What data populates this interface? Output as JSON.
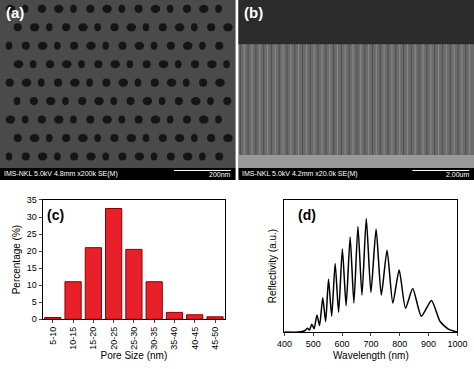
{
  "panels": [
    {
      "label": "(a)",
      "info": "IMS-NKL 5.0kV 4.8mm x200k SE(M)",
      "scale_bar": "200nm"
    },
    {
      "label": "(b)",
      "info": "IMS-NKL 5.0kV 4.2mm x20.0k SE(M)",
      "scale_bar": "2.00um"
    }
  ],
  "chart_data": [
    {
      "type": "bar",
      "annotations": [
        "(c)"
      ],
      "x_label": "Pore Size (nm)",
      "y_label": "Percentage (%)",
      "categories": [
        "5-10",
        "10-15",
        "15-20",
        "20-25",
        "25-30",
        "30-35",
        "35-40",
        "40-45",
        "45-50"
      ],
      "values": [
        0.5,
        11,
        21,
        32.5,
        20.5,
        11,
        2,
        1.3,
        0.7
      ],
      "color": "#e8202a",
      "ylim": [
        0,
        35
      ],
      "yticks": [
        0,
        5,
        10,
        15,
        20,
        25,
        30,
        35
      ],
      "grid": false
    },
    {
      "type": "line",
      "annotations": [
        "(d)"
      ],
      "x_label": "Wavelength (nm)",
      "y_label": "Reflectivity (a.u.)",
      "x": [
        400,
        450,
        470,
        480,
        487,
        495,
        503,
        513,
        522,
        533,
        543,
        553,
        564,
        576,
        588,
        601,
        614,
        628,
        641,
        655,
        669,
        684,
        700,
        718,
        736,
        756,
        776,
        798,
        820,
        845,
        875,
        910,
        940,
        970,
        1000
      ],
      "values": [
        0.0,
        0.0,
        0.01,
        0.03,
        0.015,
        0.06,
        0.025,
        0.13,
        0.05,
        0.26,
        0.08,
        0.4,
        0.12,
        0.52,
        0.15,
        0.63,
        0.2,
        0.72,
        0.22,
        0.8,
        0.28,
        0.86,
        0.3,
        0.78,
        0.28,
        0.62,
        0.22,
        0.47,
        0.18,
        0.33,
        0.12,
        0.24,
        0.08,
        0.02,
        0.0
      ],
      "color": "#000000",
      "xlim": [
        400,
        1000
      ],
      "xticks": [
        400,
        500,
        600,
        700,
        800,
        900,
        1000
      ],
      "ylim": [
        0,
        1
      ],
      "yticks": [],
      "tick_labels": "x",
      "grid": false
    }
  ]
}
